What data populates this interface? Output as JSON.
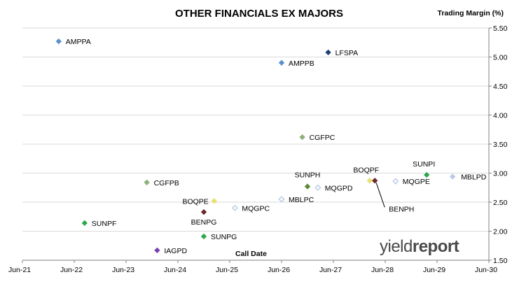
{
  "chart_data": {
    "type": "scatter",
    "title": "OTHER FINANCIALS EX MAJORS",
    "xlabel": "Call Date",
    "ylabel": "Trading Margin (%)",
    "x_ticks": [
      "Jun-21",
      "Jun-22",
      "Jun-23",
      "Jun-24",
      "Jun-25",
      "Jun-26",
      "Jun-27",
      "Jun-28",
      "Jun-29",
      "Jun-30"
    ],
    "xlim": [
      2021.5,
      2030.5
    ],
    "y_ticks": [
      "1.50",
      "2.00",
      "2.50",
      "3.00",
      "3.50",
      "4.00",
      "4.50",
      "5.00",
      "5.50"
    ],
    "ylim": [
      1.5,
      5.5
    ],
    "grid": "horizontal",
    "points": [
      {
        "label": "AMPPA",
        "x": 2022.2,
        "y": 5.27,
        "color": "#5b8fd0",
        "filled": true
      },
      {
        "label": "LFSPA",
        "x": 2027.4,
        "y": 5.08,
        "color": "#1f3f73",
        "filled": true
      },
      {
        "label": "AMPPB",
        "x": 2026.5,
        "y": 4.9,
        "color": "#5b8fd0",
        "filled": true
      },
      {
        "label": "CGFPC",
        "x": 2026.9,
        "y": 3.62,
        "color": "#8fb07a",
        "filled": true
      },
      {
        "label": "SUNPI",
        "x": 2029.3,
        "y": 2.97,
        "color": "#2ca84a",
        "filled": true
      },
      {
        "label": "MBLPD",
        "x": 2029.8,
        "y": 2.94,
        "color": "#b8c9e6",
        "filled": true
      },
      {
        "label": "BOQPF",
        "x": 2028.2,
        "y": 2.87,
        "color": "#e8e070",
        "filled": true
      },
      {
        "label": "BENPH",
        "x": 2028.3,
        "y": 2.87,
        "color": "#6b2a2a",
        "filled": true
      },
      {
        "label": "MQGPE",
        "x": 2028.7,
        "y": 2.86,
        "color": "#b8c9e6",
        "filled": false
      },
      {
        "label": "CGFPB",
        "x": 2023.9,
        "y": 2.84,
        "color": "#8fb07a",
        "filled": true
      },
      {
        "label": "SUNPH",
        "x": 2027.0,
        "y": 2.77,
        "color": "#5a8a3a",
        "filled": true
      },
      {
        "label": "MQGPD",
        "x": 2027.2,
        "y": 2.75,
        "color": "#b8c9e6",
        "filled": false
      },
      {
        "label": "MBLPC",
        "x": 2026.5,
        "y": 2.55,
        "color": "#b8c9e6",
        "filled": false
      },
      {
        "label": "BOQPE",
        "x": 2025.2,
        "y": 2.52,
        "color": "#e8e070",
        "filled": true
      },
      {
        "label": "MQGPC",
        "x": 2025.6,
        "y": 2.4,
        "color": "#b8c9e6",
        "filled": false
      },
      {
        "label": "BENPG",
        "x": 2025.0,
        "y": 2.33,
        "color": "#6b2a2a",
        "filled": true
      },
      {
        "label": "SUNPF",
        "x": 2022.7,
        "y": 2.14,
        "color": "#2ca84a",
        "filled": true
      },
      {
        "label": "SUNPG",
        "x": 2025.0,
        "y": 1.91,
        "color": "#2ca84a",
        "filled": true
      },
      {
        "label": "IAGPD",
        "x": 2024.1,
        "y": 1.67,
        "color": "#7a3fb0",
        "filled": true
      }
    ]
  },
  "logo": {
    "word_light": "yield",
    "word_bold": "report",
    "pct": "%"
  }
}
